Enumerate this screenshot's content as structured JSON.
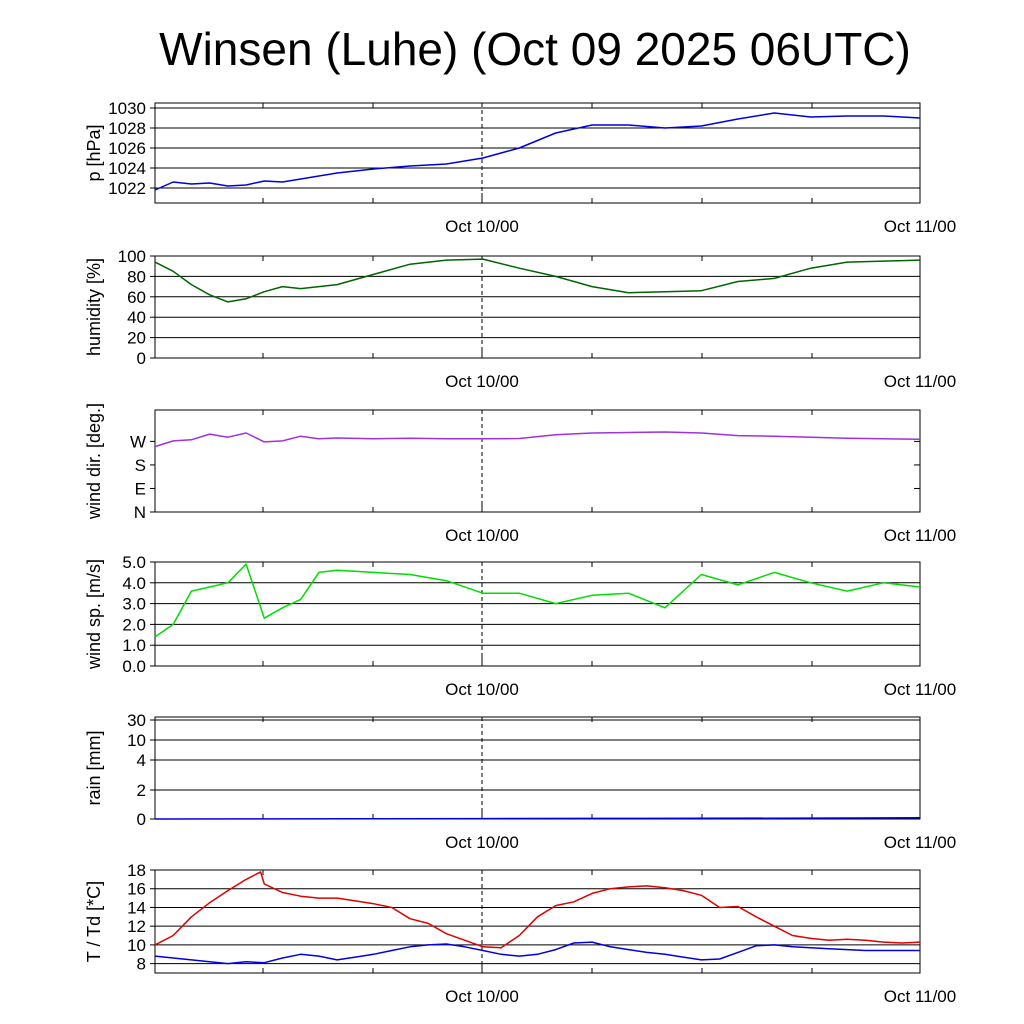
{
  "title": "Winsen (Luhe) (Oct 09 2025 06UTC)",
  "x_tick_labels": [
    "Oct 10/00",
    "Oct 11/00"
  ],
  "chart_data": [
    {
      "type": "line",
      "ylabel": "p [hPa]",
      "ylim": [
        1020.5,
        1030.5
      ],
      "y_tick_labels": [
        "1022",
        "1024",
        "1026",
        "1028",
        "1030"
      ],
      "grid": true,
      "series": [
        {
          "color": "#0000e0",
          "x": [
            0,
            1,
            2,
            3,
            4,
            5,
            6,
            7,
            8,
            9,
            10,
            12,
            14,
            16,
            18,
            20,
            22,
            24,
            26,
            28,
            30,
            32,
            34,
            36,
            38,
            40,
            42
          ],
          "y": [
            1021.8,
            1022.6,
            1022.4,
            1022.5,
            1022.2,
            1022.3,
            1022.7,
            1022.6,
            1022.9,
            1023.2,
            1023.5,
            1023.9,
            1024.2,
            1024.4,
            1025.0,
            1026.0,
            1027.5,
            1028.3,
            1028.3,
            1028.0,
            1028.2,
            1028.9,
            1029.5,
            1029.1,
            1029.2,
            1029.2,
            1029.0
          ]
        }
      ]
    },
    {
      "type": "line",
      "ylabel": "humidity [%]",
      "ylim": [
        0,
        100
      ],
      "y_tick_labels": [
        "0",
        "20",
        "40",
        "60",
        "80",
        "100"
      ],
      "grid": true,
      "series": [
        {
          "color": "#006400",
          "x": [
            0,
            1,
            2,
            3,
            4,
            5,
            6,
            7,
            8,
            9,
            10,
            12,
            14,
            16,
            18,
            20,
            22,
            24,
            26,
            28,
            30,
            32,
            34,
            36,
            38,
            40,
            42
          ],
          "y": [
            94,
            85,
            72,
            62,
            55,
            58,
            65,
            70,
            68,
            70,
            72,
            82,
            92,
            96,
            97,
            88,
            80,
            70,
            64,
            65,
            66,
            75,
            78,
            88,
            94,
            95,
            96
          ]
        }
      ]
    },
    {
      "type": "line",
      "ylabel": "wind dir. [deg.]",
      "ylim": [
        0,
        390
      ],
      "y_tick_labels": [
        "N",
        "E",
        "S",
        "W"
      ],
      "grid": false,
      "series": [
        {
          "color": "#a030e0",
          "x": [
            0,
            1,
            2,
            3,
            4,
            5,
            6,
            7,
            8,
            9,
            10,
            12,
            14,
            16,
            18,
            20,
            22,
            24,
            26,
            28,
            30,
            32,
            34,
            36,
            38,
            40,
            42
          ],
          "y": [
            250,
            272,
            276,
            298,
            286,
            302,
            268,
            272,
            290,
            280,
            283,
            280,
            282,
            280,
            280,
            281,
            295,
            302,
            304,
            306,
            302,
            292,
            290,
            286,
            282,
            280,
            278
          ]
        }
      ]
    },
    {
      "type": "line",
      "ylabel": "wind sp. [m/s]",
      "ylim": [
        0,
        5
      ],
      "y_tick_labels": [
        "0.0",
        "1.0",
        "2.0",
        "3.0",
        "4.0",
        "5.0"
      ],
      "grid": true,
      "series": [
        {
          "color": "#00dd00",
          "x": [
            0,
            1,
            2,
            3,
            4,
            5,
            6,
            7,
            8,
            9,
            10,
            12,
            14,
            16,
            18,
            20,
            22,
            24,
            26,
            28,
            30,
            32,
            34,
            36,
            38,
            40,
            42
          ],
          "y": [
            1.4,
            2.0,
            3.6,
            3.8,
            4.0,
            4.9,
            2.3,
            2.8,
            3.2,
            4.5,
            4.6,
            4.5,
            4.4,
            4.1,
            3.5,
            3.5,
            3.0,
            3.4,
            3.5,
            2.8,
            4.4,
            3.9,
            4.5,
            4.0,
            3.6,
            4.0,
            3.8
          ]
        }
      ]
    },
    {
      "type": "line",
      "ylabel": "rain [mm]",
      "ylim": [
        0,
        30
      ],
      "y_tick_labels": [
        "0",
        "2",
        "4",
        "10",
        "30"
      ],
      "grid": true,
      "series": [
        {
          "color": "#0000e0",
          "x": [
            0,
            6,
            12,
            18,
            24,
            30,
            36,
            42
          ],
          "y": [
            0,
            0.01,
            0.02,
            0.03,
            0.04,
            0.05,
            0.06,
            0.08
          ]
        }
      ]
    },
    {
      "type": "line",
      "ylabel": "T / Td [*C]",
      "ylim": [
        7,
        18
      ],
      "y_tick_labels": [
        "8",
        "10",
        "12",
        "14",
        "16",
        "18"
      ],
      "grid": true,
      "series": [
        {
          "color": "#e00000",
          "x": [
            0,
            1,
            2,
            3,
            4,
            5,
            5.8,
            6,
            7,
            8,
            9,
            10,
            11,
            12,
            13,
            14,
            15,
            16,
            17,
            18,
            19,
            20,
            21,
            22,
            23,
            24,
            25,
            26,
            27,
            28,
            29,
            30,
            31,
            32,
            33,
            34,
            35,
            36,
            37,
            38,
            39,
            40,
            41,
            42
          ],
          "y": [
            10.0,
            11.0,
            13.0,
            14.5,
            15.8,
            17.0,
            17.8,
            16.5,
            15.6,
            15.2,
            15.0,
            15.0,
            14.7,
            14.4,
            14.0,
            12.8,
            12.3,
            11.2,
            10.5,
            9.8,
            9.7,
            11.0,
            13.0,
            14.2,
            14.6,
            15.5,
            16.0,
            16.2,
            16.3,
            16.1,
            15.8,
            15.3,
            14.0,
            14.1,
            13.0,
            12.0,
            11.0,
            10.7,
            10.5,
            10.6,
            10.5,
            10.3,
            10.2,
            10.3
          ]
        },
        {
          "color": "#0000e0",
          "x": [
            0,
            1,
            2,
            3,
            4,
            5,
            6,
            7,
            8,
            9,
            10,
            11,
            12,
            13,
            14,
            15,
            16,
            17,
            18,
            19,
            20,
            21,
            22,
            23,
            24,
            25,
            26,
            27,
            28,
            29,
            30,
            31,
            32,
            33,
            34,
            35,
            36,
            37,
            38,
            39,
            40,
            41,
            42
          ],
          "y": [
            8.8,
            8.6,
            8.4,
            8.2,
            8.0,
            8.2,
            8.1,
            8.6,
            9.0,
            8.8,
            8.4,
            8.7,
            9.0,
            9.4,
            9.8,
            10.0,
            10.1,
            9.8,
            9.4,
            9.0,
            8.8,
            9.0,
            9.5,
            10.2,
            10.3,
            9.8,
            9.5,
            9.2,
            9.0,
            8.7,
            8.4,
            8.5,
            9.2,
            9.9,
            10.0,
            9.8,
            9.7,
            9.6,
            9.5,
            9.4,
            9.4,
            9.4,
            9.4
          ]
        }
      ]
    }
  ]
}
